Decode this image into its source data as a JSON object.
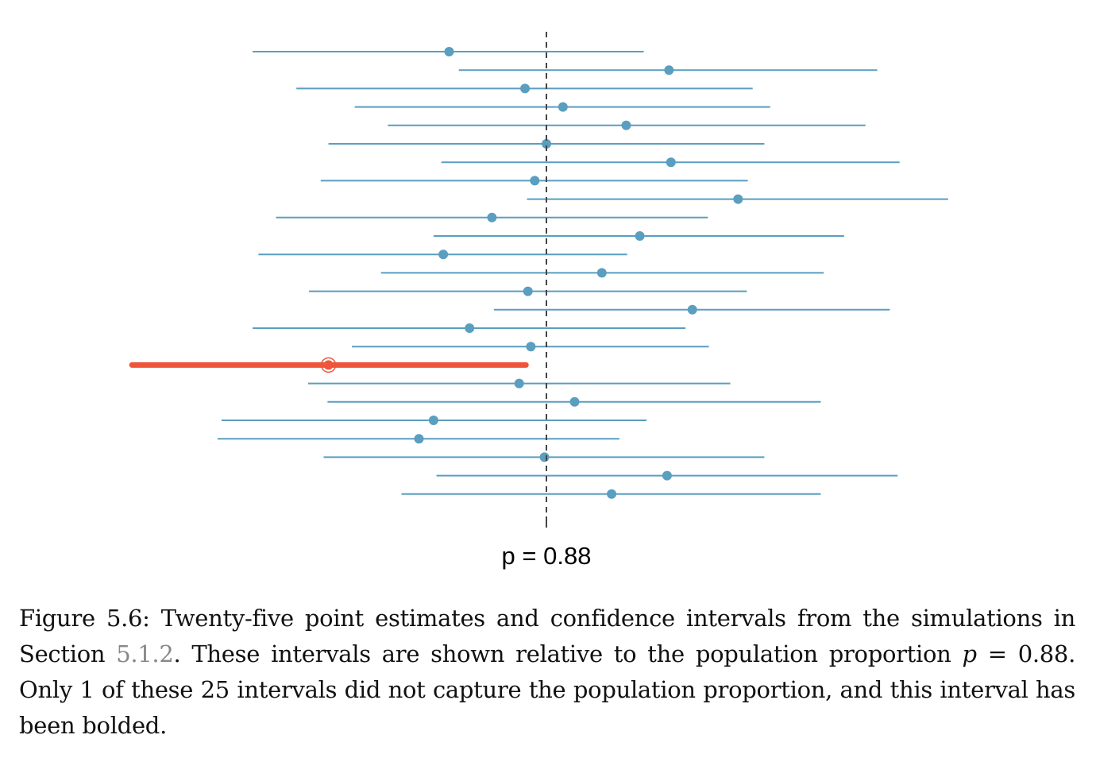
{
  "chart_data": {
    "type": "interval",
    "reference_line": {
      "label": "p = 0.88",
      "value": 0.88,
      "style": "dashed"
    },
    "xlim": [
      0.835,
      0.925
    ],
    "grid": false,
    "colors": {
      "captured": "#5a9ec0",
      "missed": "#ee553b",
      "reference": "#444444"
    },
    "intervals": [
      {
        "lower": 0.8498,
        "estimate": 0.87,
        "upper": 0.89
      },
      {
        "lower": 0.871,
        "estimate": 0.8926,
        "upper": 0.914
      },
      {
        "lower": 0.8543,
        "estimate": 0.8778,
        "upper": 0.9012
      },
      {
        "lower": 0.8603,
        "estimate": 0.8817,
        "upper": 0.903
      },
      {
        "lower": 0.8637,
        "estimate": 0.8882,
        "upper": 0.9128
      },
      {
        "lower": 0.8576,
        "estimate": 0.88,
        "upper": 0.9024
      },
      {
        "lower": 0.8692,
        "estimate": 0.8928,
        "upper": 0.9163
      },
      {
        "lower": 0.8568,
        "estimate": 0.8788,
        "upper": 0.9007
      },
      {
        "lower": 0.878,
        "estimate": 0.8997,
        "upper": 0.9213
      },
      {
        "lower": 0.8522,
        "estimate": 0.8744,
        "upper": 0.8966
      },
      {
        "lower": 0.8684,
        "estimate": 0.8896,
        "upper": 0.9106
      },
      {
        "lower": 0.8504,
        "estimate": 0.8694,
        "upper": 0.8883
      },
      {
        "lower": 0.863,
        "estimate": 0.8857,
        "upper": 0.9085
      },
      {
        "lower": 0.8556,
        "estimate": 0.8781,
        "upper": 0.9006
      },
      {
        "lower": 0.8746,
        "estimate": 0.895,
        "upper": 0.9153
      },
      {
        "lower": 0.8498,
        "estimate": 0.8721,
        "upper": 0.8943
      },
      {
        "lower": 0.86,
        "estimate": 0.8784,
        "upper": 0.8967
      },
      {
        "lower": 0.8374,
        "estimate": 0.8576,
        "upper": 0.8779,
        "missed": true
      },
      {
        "lower": 0.8555,
        "estimate": 0.8772,
        "upper": 0.8989
      },
      {
        "lower": 0.8575,
        "estimate": 0.8829,
        "upper": 0.9082
      },
      {
        "lower": 0.8466,
        "estimate": 0.8684,
        "upper": 0.8903
      },
      {
        "lower": 0.8462,
        "estimate": 0.8669,
        "upper": 0.8875
      },
      {
        "lower": 0.8571,
        "estimate": 0.8798,
        "upper": 0.9024
      },
      {
        "lower": 0.8687,
        "estimate": 0.8924,
        "upper": 0.9161
      },
      {
        "lower": 0.8651,
        "estimate": 0.8867,
        "upper": 0.9082
      }
    ]
  },
  "caption": {
    "figure_label": "Figure 5.6:",
    "part1": " Twenty-five point estimates and confidence intervals from the simulations in Section ",
    "section_ref": "5.1.2",
    "part2": ".  These intervals are shown relative to the population proportion ",
    "p_symbol": "p",
    "part3": " = 0.88.  Only 1 of these 25 intervals did not capture the population proportion, and this interval has been bolded."
  }
}
